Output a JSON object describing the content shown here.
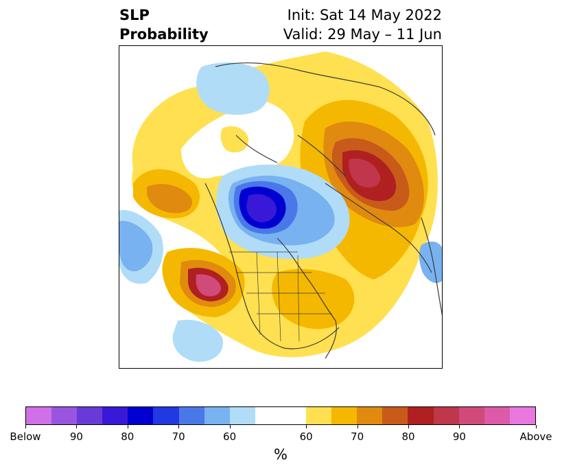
{
  "title": {
    "left_line1": "SLP",
    "left_line2": "Probability",
    "right_line1": "Init: Sat 14 May 2022",
    "right_line2": "Valid: 29 May – 11 Jun"
  },
  "map": {
    "projection": "north-polar-stereographic",
    "coverage": "Northern Hemisphere, centered on North Pole",
    "features": [
      "coastlines",
      "country borders",
      "US state borders",
      "Canadian provinces"
    ]
  },
  "colorbar": {
    "unit": "%",
    "below_colors": [
      "#d070e8",
      "#9a55e0",
      "#6a3ad8",
      "#3a18d8",
      "#0000d0",
      "#2238e0",
      "#4a78e8",
      "#78b2f0",
      "#b0dcf8"
    ],
    "neutral_color": "#ffffff",
    "above_colors": [
      "#ffe050",
      "#f5b800",
      "#e08a10",
      "#c85a1a",
      "#b02020",
      "#c0364a",
      "#d04a7a",
      "#dc5aa8",
      "#e878e0"
    ],
    "tick_labels": [
      {
        "text": "Below"
      },
      {
        "text": "90"
      },
      {
        "text": "80"
      },
      {
        "text": "70"
      },
      {
        "text": "60"
      },
      {
        "text": "60"
      },
      {
        "text": "70"
      },
      {
        "text": "80"
      },
      {
        "text": "90"
      },
      {
        "text": "Above"
      }
    ]
  }
}
